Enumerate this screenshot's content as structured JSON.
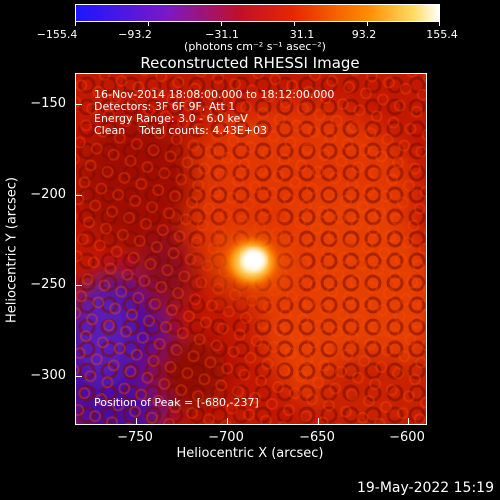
{
  "colorbar": {
    "ticks": [
      "−155.4",
      "−93.2",
      "−31.1",
      "31.1",
      "93.2",
      "155.4"
    ],
    "units": "(photons cm⁻² s⁻¹ asec⁻²)",
    "colors": [
      "#1b16ff",
      "#6a1ad0",
      "#b0123a",
      "#e02200",
      "#ff6a00",
      "#ffc840",
      "#ffffff"
    ]
  },
  "plot": {
    "title": "Reconstructed RHESSI Image",
    "info_lines": [
      "16-Nov-2014 18:08:00.000 to 18:12:00.000",
      "Detectors: 3F 6F 9F, Att 1",
      "Energy Range: 3.0 - 6.0 keV",
      "Clean    Total counts: 4.43E+03"
    ],
    "peak_text": "Position of Peak = [-680,-237]",
    "xlabel": "Heliocentric X (arcsec)",
    "ylabel": "Heliocentric Y (arcsec)",
    "xticks": [
      "−750",
      "−700",
      "−650",
      "−600"
    ],
    "yticks": [
      "−150",
      "−200",
      "−250",
      "−300"
    ]
  },
  "footer": {
    "date": "19-May-2022 15:19"
  }
}
